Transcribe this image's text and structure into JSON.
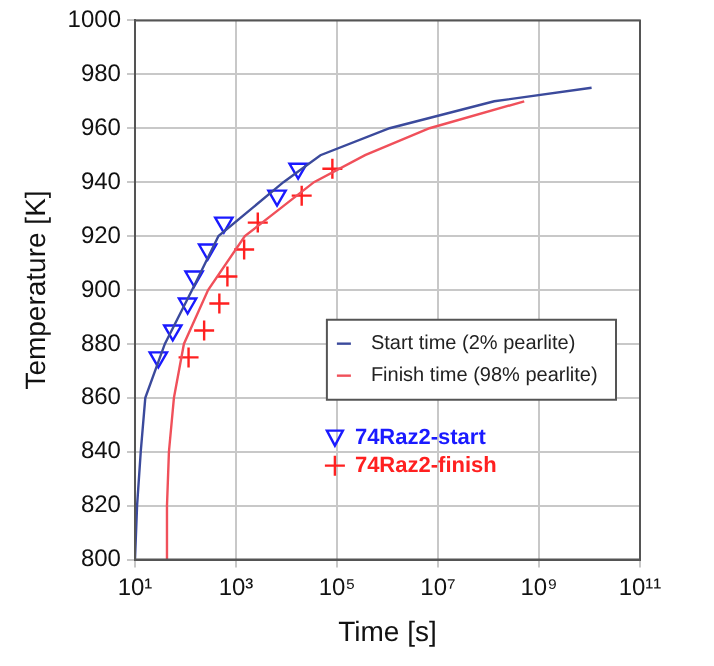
{
  "chart_data": {
    "type": "line",
    "xlabel": "Time [s]",
    "ylabel": "Temperature [K]",
    "log": "x",
    "xlim": [
      10,
      100000000000
    ],
    "xticks": [
      {
        "value": 10,
        "label": "10¹"
      },
      {
        "value": 1000,
        "label": "10³"
      },
      {
        "value": 100000,
        "label": "10⁵"
      },
      {
        "value": 10000000,
        "label": "10⁷"
      },
      {
        "value": 1000000000,
        "label": "10⁹"
      },
      {
        "value": 100000000000,
        "label": "10¹¹"
      }
    ],
    "ylim": [
      800,
      1000
    ],
    "yticks": [
      800,
      820,
      840,
      860,
      880,
      900,
      920,
      940,
      960,
      980,
      1000
    ],
    "grid": true,
    "legend": "right",
    "series": [
      {
        "name": "Start time (2% pearlite)",
        "color": "#3b4a9c",
        "marker": "none",
        "x": [
          10,
          11,
          13,
          16,
          39,
          135,
          450,
          8700,
          47000,
          1100000,
          130000000,
          11000000000
        ],
        "values": [
          800,
          820,
          840,
          860,
          880,
          900,
          920,
          940,
          950,
          960,
          970,
          975
        ]
      },
      {
        "name": "Finish time (98% pearlite)",
        "color": "#f0505a",
        "marker": "none",
        "x": [
          42,
          43,
          47,
          59,
          93,
          280,
          1500,
          35000,
          360000,
          6800000,
          510000000
        ],
        "values": [
          800,
          820,
          840,
          860,
          880,
          900,
          920,
          940,
          950,
          960,
          970
        ]
      },
      {
        "name": "74Raz2-start",
        "type": "scatter",
        "color": "#1a1aff",
        "marker": "triangle",
        "x": [
          29,
          56,
          110,
          148,
          275,
          575,
          6500,
          17000
        ],
        "values": [
          875,
          885,
          895,
          905,
          915,
          925,
          935,
          945
        ]
      },
      {
        "name": "74Raz2-finish",
        "type": "scatter",
        "color": "#ff2020",
        "marker": "cross",
        "x": [
          115,
          234,
          468,
          676,
          1450,
          2700,
          20000,
          81000
        ],
        "values": [
          875,
          885,
          895,
          905,
          915,
          925,
          935,
          945
        ]
      }
    ]
  }
}
